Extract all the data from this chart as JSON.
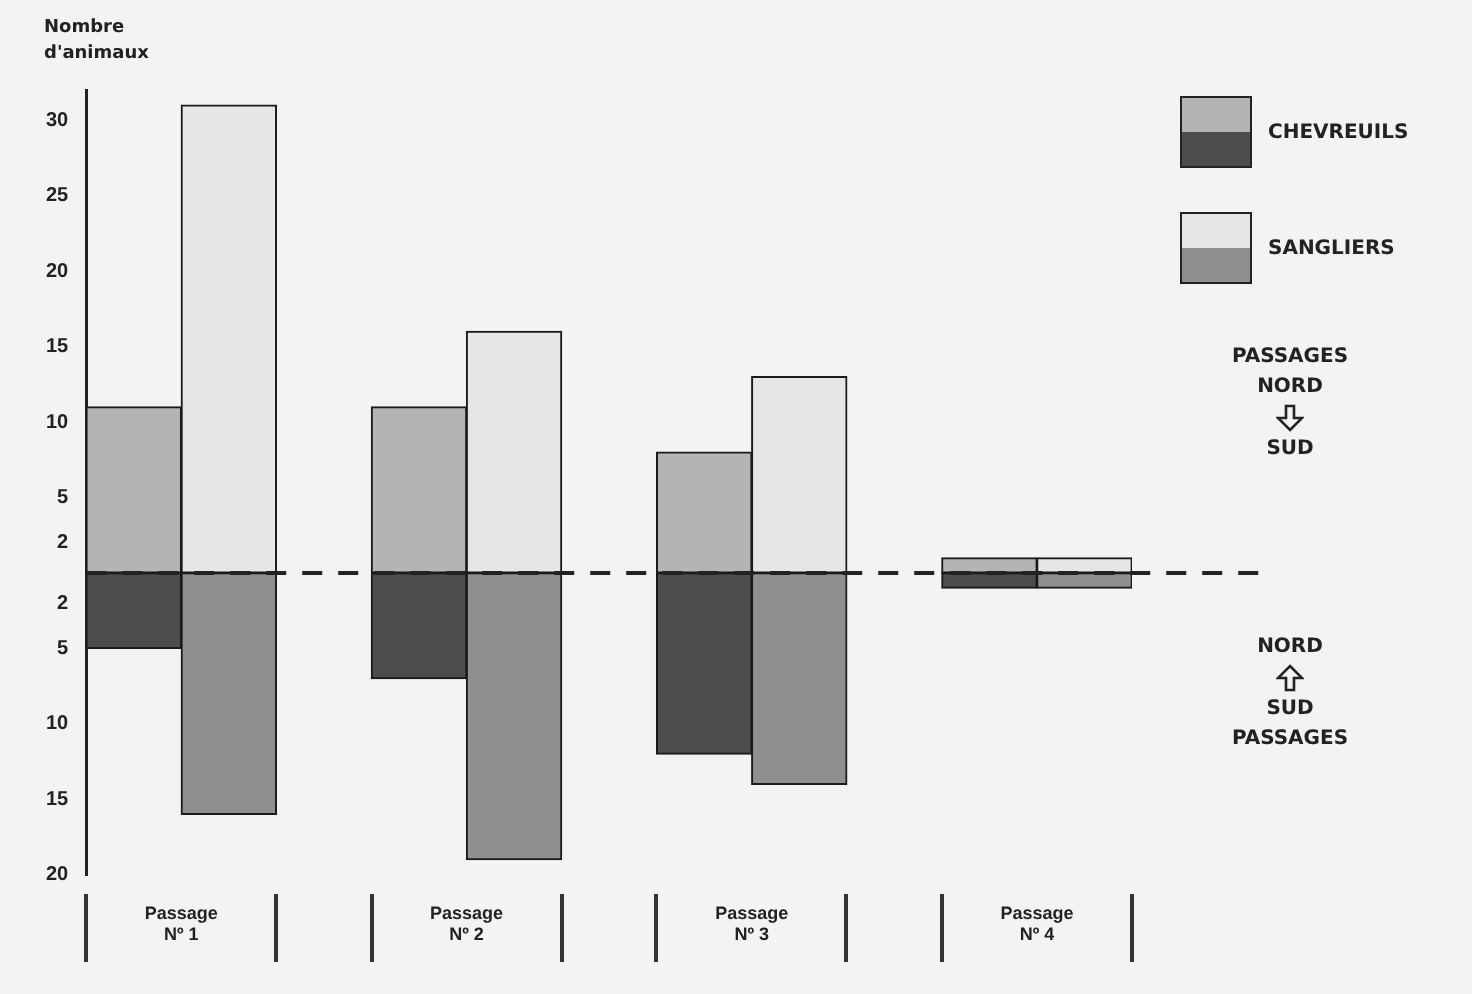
{
  "chart_data": {
    "type": "bar",
    "ylabel": "Nombre d'animaux",
    "categories": [
      "Passage Nº 1",
      null,
      null,
      "Passage Nº 2",
      null,
      null,
      "Passage Nº 3",
      null,
      null,
      "Passage Nº 4",
      null
    ],
    "stacked": true,
    "series": [
      {
        "name": "CHEVREUILS",
        "color": "#b4b4b4",
        "values": [
          11,
          null,
          null,
          11,
          null,
          null,
          8,
          null,
          null,
          1,
          null
        ]
      },
      {
        "color": "#4d4d4d",
        "values": [
          -5,
          null,
          null,
          -7,
          null,
          null,
          -12,
          null,
          null,
          -1,
          null
        ]
      },
      {
        "name": "SANGLIERS",
        "color": "#e6e6e6",
        "values": [
          null,
          31,
          null,
          null,
          16,
          null,
          null,
          13,
          null,
          null,
          1
        ]
      },
      {
        "color": "#8f8f8f",
        "values": [
          null,
          -16,
          null,
          null,
          -19,
          null,
          null,
          -14,
          null,
          null,
          -1
        ]
      }
    ],
    "ylim": [
      -20,
      32
    ],
    "yticks": [
      30,
      25,
      20,
      15,
      10,
      5,
      2,
      {
        "value": -2,
        "label": "2"
      },
      {
        "value": -5,
        "label": "5"
      },
      {
        "value": -10,
        "label": "10"
      },
      {
        "value": -15,
        "label": "15"
      },
      {
        "value": -20,
        "label": "20"
      }
    ],
    "ref_lines": [
      {
        "axis": "y",
        "value": 0,
        "line_style": "dashed"
      }
    ],
    "legend": "top right",
    "annotations": [
      "PASSAGES",
      "NORD",
      "SUD",
      "NORD",
      "SUD",
      "PASSAGES"
    ]
  }
}
